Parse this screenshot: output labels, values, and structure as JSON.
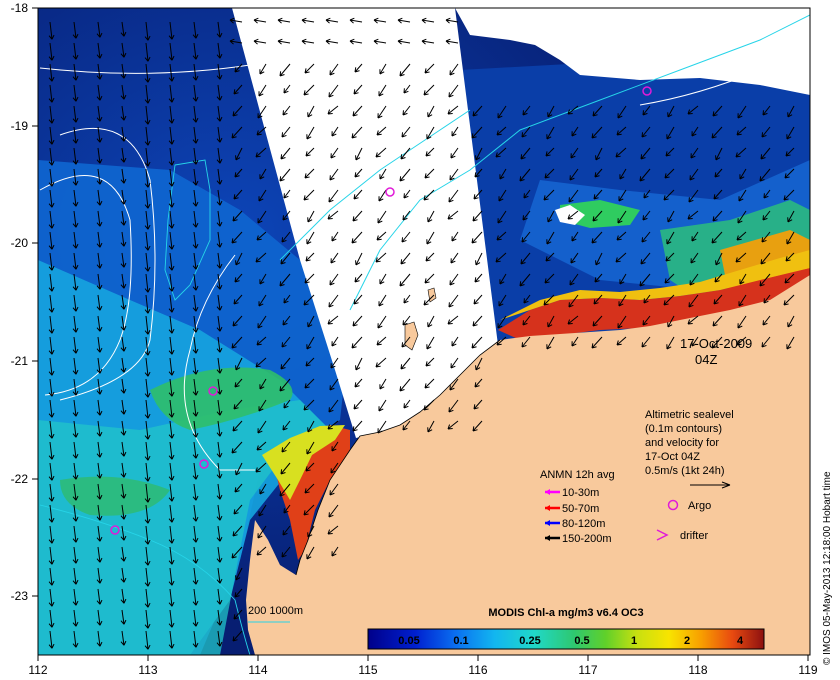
{
  "map": {
    "lon_ticks": [
      "112",
      "113",
      "114",
      "115",
      "116",
      "117",
      "118",
      "119"
    ],
    "lat_ticks": [
      "-18",
      "-19",
      "-20",
      "-21",
      "-22",
      "-23"
    ],
    "date_label": "17-Oct-2009",
    "time_label": "04Z",
    "colors": {
      "land": "#f8c99c",
      "deep_ocean": "#08227a",
      "mid_ocean": "#0a5fd0",
      "coastal": "#1fb9d8",
      "green": "#2fbf6a",
      "high_chl": "#d6321c",
      "contour_white": "#ffffff",
      "contour_cyan": "#26d4e8",
      "argo": "#e01bd8",
      "arrow": "#000000"
    }
  },
  "annotations": {
    "altimetry_lines": [
      "Altimetric sealevel",
      "(0.1m contours)",
      "and velocity for",
      "17-Oct 04Z",
      "0.5m/s (1kt 24h)"
    ],
    "anmn_title": "ANMN 12h avg",
    "anmn_items": [
      {
        "label": "10-30m",
        "color": "#ff00ff"
      },
      {
        "label": "50-70m",
        "color": "#ff0000"
      },
      {
        "label": "80-120m",
        "color": "#0000ff"
      },
      {
        "label": "150-200m",
        "color": "#000000"
      }
    ],
    "argo_label": "Argo",
    "drifter_label": "drifter",
    "bathy_label": "200  1000m",
    "credit": "© IMOS 05-May-2013 12:18:00 Hobart time"
  },
  "colorbar": {
    "title": "MODIS Chl-a mg/m3 v6.4 OC3",
    "tick_labels": [
      "0.05",
      "0.1",
      "0.25",
      "0.5",
      "1",
      "2",
      "4"
    ]
  }
}
